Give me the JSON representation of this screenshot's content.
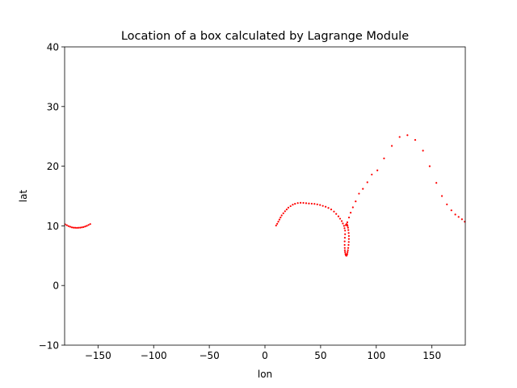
{
  "chart_data": {
    "type": "scatter",
    "title": "Location of a box calculated by Lagrange Module",
    "xlabel": "lon",
    "ylabel": "lat",
    "xlim": [
      -180,
      180
    ],
    "ylim": [
      -10,
      40
    ],
    "xticks": [
      -150,
      -100,
      -50,
      0,
      50,
      100,
      150
    ],
    "xtick_labels": [
      "−150",
      "−100",
      "−50",
      "0",
      "50",
      "100",
      "150"
    ],
    "yticks": [
      -10,
      0,
      10,
      20,
      30,
      40
    ],
    "ytick_labels": [
      "−10",
      "0",
      "10",
      "20",
      "30",
      "40"
    ],
    "grid": false,
    "marker_color": "#ff0000",
    "series": [
      {
        "x": [
          -179.5,
          -178,
          -176.5,
          -175,
          -173.5,
          -172,
          -170.5,
          -169,
          -167.5,
          -166,
          -164.5,
          -163,
          -161.5,
          -160,
          -158.5,
          -157,
          10,
          11,
          12,
          13,
          14,
          15,
          16.5,
          18,
          19.5,
          21,
          23,
          25,
          27,
          29.5,
          32,
          34.5,
          37,
          39.5,
          42,
          44.5,
          47,
          49.5,
          52,
          54.5,
          57,
          59.5,
          62,
          64,
          66,
          67.5,
          69,
          70,
          71,
          71.5,
          72,
          72,
          71.8,
          71.6,
          71.6,
          71.7,
          71.8,
          72,
          72.3,
          72.6,
          73,
          73.3,
          73.6,
          73.9,
          74.2,
          74.5,
          74.8,
          75.1,
          75.3,
          75.4,
          75.4,
          75.2,
          74.9,
          74.6,
          74.2,
          73.8,
          73.4,
          73,
          72.7,
          74,
          75.5,
          77,
          79,
          81.5,
          84.5,
          88,
          92,
          96,
          101,
          107,
          114,
          121,
          128,
          135,
          142,
          148,
          154,
          159,
          163.5,
          167.5,
          171,
          174,
          177,
          179.5
        ],
        "y": [
          10.25,
          10.1,
          9.95,
          9.85,
          9.75,
          9.7,
          9.68,
          9.66,
          9.68,
          9.7,
          9.75,
          9.8,
          9.9,
          10,
          10.15,
          10.3,
          10.05,
          10.35,
          10.7,
          11.05,
          11.4,
          11.75,
          12.1,
          12.45,
          12.75,
          13.05,
          13.3,
          13.55,
          13.7,
          13.82,
          13.86,
          13.85,
          13.8,
          13.75,
          13.72,
          13.68,
          13.6,
          13.5,
          13.35,
          13.2,
          13,
          12.75,
          12.4,
          12,
          11.6,
          11.2,
          10.8,
          10.4,
          10,
          9.6,
          9.2,
          8.6,
          8,
          7.4,
          6.8,
          6.3,
          5.9,
          5.6,
          5.3,
          5.1,
          5,
          5,
          5.1,
          5.3,
          5.6,
          5.9,
          6.3,
          6.8,
          7.3,
          7.8,
          8.3,
          8.8,
          9.3,
          9.7,
          10,
          10.2,
          10.3,
          10.25,
          10.1,
          10.6,
          11.4,
          12.2,
          13.1,
          14.1,
          15.4,
          16.2,
          17.3,
          18.6,
          19.3,
          21.3,
          23.4,
          24.9,
          25.2,
          24.4,
          22.6,
          20,
          17.2,
          15,
          13.6,
          12.6,
          11.9,
          11.5,
          11.1,
          10.7
        ]
      }
    ]
  }
}
